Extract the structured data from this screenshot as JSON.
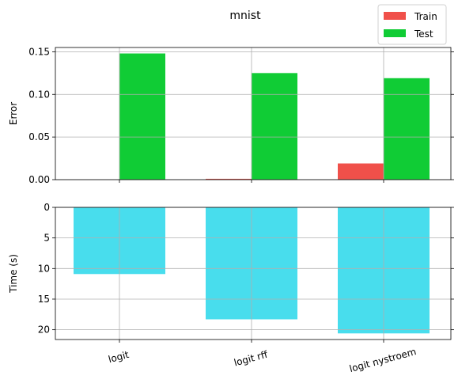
{
  "figure_title": "mnist",
  "legend": {
    "placement": "top-right",
    "entries": [
      {
        "label": "Train",
        "color": "#f0504a"
      },
      {
        "label": "Test",
        "color": "#10cc35"
      }
    ]
  },
  "chart_data": [
    {
      "type": "bar",
      "ylabel": "Error",
      "categories": [
        "logit",
        "logit rff",
        "logit nystroem"
      ],
      "series": [
        {
          "name": "Train",
          "color": "#f0504a",
          "values": [
            0.0,
            0.001,
            0.019
          ]
        },
        {
          "name": "Test",
          "color": "#10cc35",
          "values": [
            0.148,
            0.125,
            0.119
          ]
        }
      ],
      "ylim": [
        0,
        0.155
      ],
      "yticks": [
        0.0,
        0.05,
        0.1,
        0.15
      ],
      "ytick_labels": [
        "0.00",
        "0.05",
        "0.10",
        "0.15"
      ],
      "grid": true
    },
    {
      "type": "bar",
      "ylabel": "Time (s)",
      "categories": [
        "logit",
        "logit rff",
        "logit nystroem"
      ],
      "series": [
        {
          "color": "#48dded",
          "values": [
            10.9,
            18.3,
            20.6
          ]
        }
      ],
      "ylim": [
        0,
        21.6
      ],
      "y_inverted": true,
      "yticks": [
        0,
        5,
        10,
        15,
        20
      ],
      "ytick_labels": [
        "0",
        "5",
        "10",
        "15",
        "20"
      ],
      "grid": true
    }
  ]
}
